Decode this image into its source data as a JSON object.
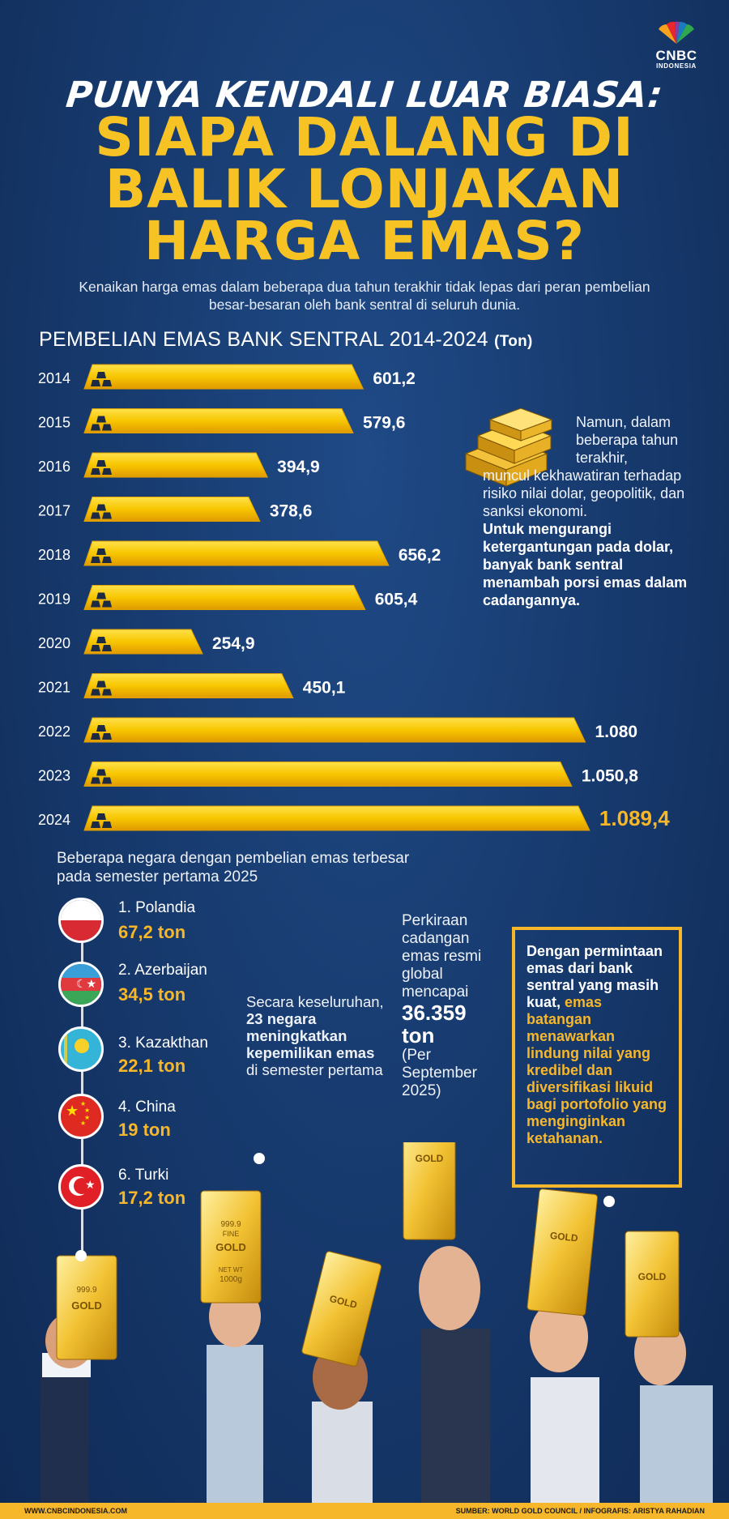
{
  "brand": {
    "logo_text": "CNBC",
    "logo_sub": "INDONESIA"
  },
  "header": {
    "kicker": "PUNYA KENDALI LUAR BIASA:",
    "headline_lines": [
      "SIAPA DALANG DI",
      "BALIK LONJAKAN",
      "HARGA EMAS?"
    ],
    "intro": "Kenaikan harga emas dalam beberapa dua tahun terakhir tidak lepas dari peran pembelian besar-besaran oleh bank sentral di seluruh dunia."
  },
  "chart_data": {
    "type": "bar",
    "title": "PEMBELIAN EMAS BANK SENTRAL 2014-2024",
    "unit": "(Ton)",
    "categories": [
      "2014",
      "2015",
      "2016",
      "2017",
      "2018",
      "2019",
      "2020",
      "2021",
      "2022",
      "2023",
      "2024"
    ],
    "values": [
      601.2,
      579.6,
      394.9,
      378.6,
      656.2,
      605.4,
      254.9,
      450.1,
      1080,
      1050.8,
      1089.4
    ],
    "value_labels": [
      "601,2",
      "579,6",
      "394,9",
      "378,6",
      "656,2",
      "605,4",
      "254,9",
      "450,1",
      "1.080",
      "1.050,8",
      "1.089,4"
    ],
    "xlim": [
      0,
      1100
    ],
    "orientation": "horizontal",
    "colors": {
      "bar": "#f7c600",
      "bar_dark": "#e0a000",
      "highlight_label": "#f7b72a"
    }
  },
  "side_note": {
    "plain_indented": "Namun, dalam beberapa tahun terakhir,",
    "plain": "muncul kekhawatiran terhadap risiko nilai dolar, geopolitik, dan sanksi ekonomi.",
    "bold": "Untuk mengurangi ketergantungan pada dolar, banyak bank sentral menambah porsi emas dalam cadangannya."
  },
  "countries": {
    "title": "Beberapa negara dengan pembelian emas terbesar pada semester pertama 2025",
    "items": [
      {
        "name": "1. Polandia",
        "value": "67,2 ton"
      },
      {
        "name": "2. Azerbaijan",
        "value": "34,5 ton"
      },
      {
        "name": "3. Kazakthan",
        "value": "22,1 ton"
      },
      {
        "name": "4. China",
        "value": "19 ton"
      },
      {
        "name": "6. Turki",
        "value": "17,2 ton"
      }
    ]
  },
  "mid_note": {
    "pre": "Secara keseluruhan,",
    "bold": "23 negara meningkatkan kepemilikan emas",
    "post": "di semester pertama"
  },
  "reserve": {
    "pre": "Perkiraan cadangan emas resmi global mencapai",
    "big": "36.359 ton",
    "post": "(Per September 2025)"
  },
  "box": {
    "white1": "Dengan permintaan emas dari bank sentral yang masih kuat,",
    "gold": "emas batangan menawarkan lindung nilai yang kredibel dan diversifikasi likuid bagi portofolio yang menginginkan ketahanan."
  },
  "gold_bar_text": {
    "purity": "999.9",
    "fine": "FINE",
    "gold": "GOLD",
    "weight_label": "NET WT",
    "weight": "1000g"
  },
  "footer": {
    "left": "WWW.CNBCINDONESIA.COM",
    "right": "SUMBER: WORLD GOLD COUNCIL / INFOGRAFIS: ARISTYA RAHADIAN"
  }
}
